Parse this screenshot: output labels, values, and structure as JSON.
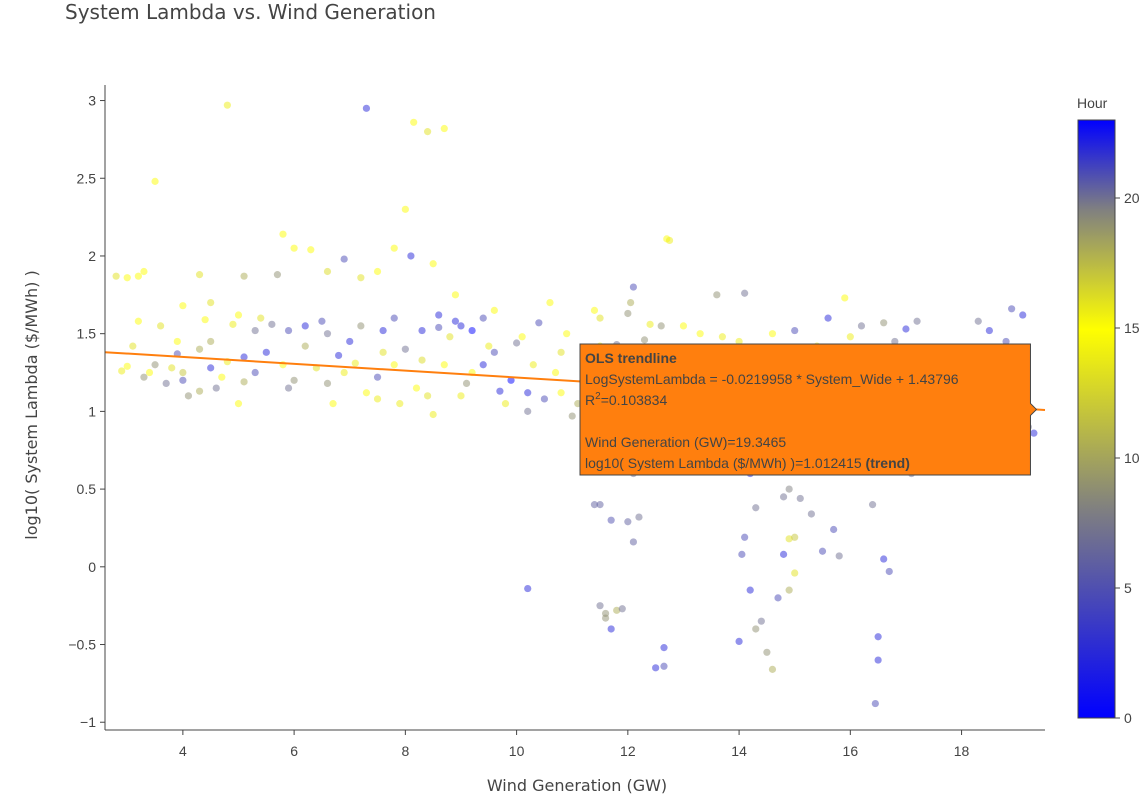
{
  "chart_data": {
    "type": "scatter",
    "title": "System Lambda vs. Wind Generation",
    "xlabel": "Wind Generation (GW)",
    "ylabel": "log10( System Lambda ($/MWh) )",
    "xlim": [
      2.6,
      19.5
    ],
    "ylim": [
      -1.05,
      3.1
    ],
    "xticks": [
      4,
      6,
      8,
      10,
      12,
      14,
      16,
      18
    ],
    "yticks": [
      3,
      2.5,
      2,
      1.5,
      1,
      0.5,
      0,
      -0.5,
      -1
    ],
    "ytick_labels": [
      "3",
      "2.5",
      "2",
      "1.5",
      "1",
      "0.5",
      "0",
      "−0.5",
      "−1"
    ],
    "grid": false,
    "colorbar": {
      "title": "Hour",
      "range": [
        0,
        23
      ],
      "ticks": [
        0,
        5,
        10,
        15,
        20
      ],
      "colorscale": [
        [
          0,
          "#0000ff"
        ],
        [
          0.35,
          "#808080"
        ],
        [
          0.65,
          "#ffff00"
        ],
        [
          0.85,
          "#808080"
        ],
        [
          1,
          "#0000ff"
        ]
      ]
    },
    "trendline": {
      "slope": -0.0219958,
      "intercept": 1.43796,
      "x_range": [
        2.6,
        19.5
      ],
      "color": "#ff7f0e"
    },
    "tooltip": {
      "header": "OLS trendline",
      "equation": "LogSystemLambda = -0.0219958 * System_Wide + 1.43796",
      "r2_label": "R",
      "r2_sup": "2",
      "r2_value": "=0.103834",
      "x_line": "Wind Generation (GW)=19.3465",
      "y_line": "log10( System Lambda ($/MWh) )=1.012415 ",
      "y_suffix": "(trend)",
      "x": 19.3465,
      "y": 1.012415,
      "bg_color": "#ff7f0e"
    },
    "points": [
      [
        4.8,
        2.97,
        14
      ],
      [
        7.3,
        2.95,
        22
      ],
      [
        8.15,
        2.86,
        15
      ],
      [
        8.4,
        2.8,
        16
      ],
      [
        8.7,
        2.82,
        15
      ],
      [
        3.5,
        2.48,
        15
      ],
      [
        8.0,
        2.3,
        15
      ],
      [
        5.8,
        2.14,
        15
      ],
      [
        12.7,
        2.11,
        15
      ],
      [
        12.75,
        2.1,
        14
      ],
      [
        6.0,
        2.05,
        15
      ],
      [
        6.3,
        2.04,
        15
      ],
      [
        7.8,
        2.05,
        15
      ],
      [
        8.1,
        2.0,
        22
      ],
      [
        6.9,
        1.98,
        21
      ],
      [
        8.5,
        1.95,
        15
      ],
      [
        6.6,
        1.9,
        13
      ],
      [
        4.3,
        1.88,
        16
      ],
      [
        5.1,
        1.87,
        18
      ],
      [
        7.2,
        1.86,
        16
      ],
      [
        3.3,
        1.9,
        15
      ],
      [
        12.1,
        1.8,
        21
      ],
      [
        13.6,
        1.75,
        19
      ],
      [
        15.9,
        1.73,
        15
      ],
      [
        12.0,
        1.63,
        19
      ],
      [
        12.05,
        1.7,
        18
      ],
      [
        14.1,
        1.76,
        20
      ],
      [
        18.9,
        1.66,
        21
      ],
      [
        19.1,
        1.62,
        22
      ],
      [
        18.3,
        1.58,
        20
      ],
      [
        17.2,
        1.58,
        20
      ],
      [
        16.6,
        1.57,
        19
      ],
      [
        15.6,
        1.6,
        22
      ],
      [
        12.6,
        1.55,
        19
      ],
      [
        11.5,
        1.6,
        16
      ],
      [
        18.5,
        1.52,
        22
      ],
      [
        18.8,
        1.45,
        21
      ],
      [
        17.0,
        1.53,
        22
      ],
      [
        16.2,
        1.55,
        20
      ],
      [
        13.3,
        1.5,
        15
      ],
      [
        14.0,
        1.45,
        14
      ],
      [
        15.0,
        1.52,
        21
      ],
      [
        16.8,
        1.45,
        20
      ],
      [
        10.4,
        1.57,
        21
      ],
      [
        9.4,
        1.6,
        21
      ],
      [
        9.0,
        1.55,
        22
      ],
      [
        8.6,
        1.62,
        22
      ],
      [
        6.5,
        1.58,
        21
      ],
      [
        5.6,
        1.56,
        20
      ],
      [
        7.0,
        1.45,
        22
      ],
      [
        4.3,
        1.4,
        18
      ],
      [
        3.9,
        1.45,
        15
      ],
      [
        3.1,
        1.42,
        16
      ],
      [
        3.5,
        1.3,
        19
      ],
      [
        4.0,
        1.2,
        21
      ],
      [
        4.6,
        1.15,
        20
      ],
      [
        5.3,
        1.25,
        21
      ],
      [
        6.0,
        1.2,
        19
      ],
      [
        7.5,
        1.22,
        21
      ],
      [
        8.2,
        1.15,
        15
      ],
      [
        9.0,
        1.1,
        14
      ],
      [
        9.8,
        1.05,
        14
      ],
      [
        10.5,
        1.08,
        21
      ],
      [
        11.0,
        0.97,
        19
      ],
      [
        11.4,
        0.98,
        20
      ],
      [
        5.0,
        1.05,
        15
      ],
      [
        6.7,
        1.05,
        15
      ],
      [
        7.5,
        1.08,
        14
      ],
      [
        8.5,
        0.98,
        14
      ],
      [
        5.3,
        1.52,
        20
      ],
      [
        6.2,
        1.42,
        18
      ],
      [
        7.6,
        1.52,
        22
      ],
      [
        8.8,
        1.48,
        16
      ],
      [
        10.0,
        1.44,
        20
      ],
      [
        10.9,
        1.5,
        15
      ],
      [
        11.8,
        1.43,
        20
      ],
      [
        12.3,
        1.46,
        19
      ],
      [
        13.0,
        1.55,
        15
      ],
      [
        13.7,
        1.48,
        14
      ],
      [
        14.6,
        1.5,
        15
      ],
      [
        3.4,
        1.25,
        15
      ],
      [
        3.8,
        1.28,
        16
      ],
      [
        4.8,
        1.32,
        14
      ],
      [
        5.8,
        1.3,
        15
      ],
      [
        6.4,
        1.28,
        16
      ],
      [
        7.1,
        1.31,
        14
      ],
      [
        7.8,
        1.3,
        15
      ],
      [
        8.3,
        1.33,
        13
      ],
      [
        9.2,
        1.25,
        15
      ],
      [
        9.6,
        1.38,
        21
      ],
      [
        10.3,
        1.3,
        14
      ],
      [
        10.7,
        1.25,
        15
      ],
      [
        11.2,
        1.18,
        16
      ],
      [
        5.5,
        1.38,
        22
      ],
      [
        6.8,
        1.36,
        22
      ],
      [
        8.0,
        1.4,
        20
      ],
      [
        9.4,
        1.3,
        22
      ],
      [
        9.9,
        1.2,
        23
      ],
      [
        10.2,
        1.12,
        22
      ],
      [
        11.1,
        1.05,
        18
      ],
      [
        11.6,
        0.92,
        18
      ],
      [
        12.2,
        1.3,
        16
      ],
      [
        12.9,
        1.25,
        20
      ],
      [
        13.5,
        1.4,
        14
      ],
      [
        14.2,
        1.35,
        15
      ],
      [
        3.2,
        1.58,
        15
      ],
      [
        3.6,
        1.55,
        16
      ],
      [
        4.4,
        1.59,
        15
      ],
      [
        4.9,
        1.56,
        14
      ],
      [
        5.4,
        1.6,
        16
      ],
      [
        3.0,
        1.86,
        15
      ],
      [
        2.8,
        1.87,
        16
      ],
      [
        3.2,
        1.87,
        15
      ],
      [
        4.0,
        1.68,
        15
      ],
      [
        4.5,
        1.7,
        16
      ],
      [
        5.0,
        1.62,
        15
      ],
      [
        5.7,
        1.88,
        19
      ],
      [
        7.5,
        1.9,
        15
      ],
      [
        8.9,
        1.75,
        15
      ],
      [
        9.6,
        1.65,
        15
      ],
      [
        10.6,
        1.7,
        15
      ],
      [
        11.4,
        1.65,
        15
      ],
      [
        12.4,
        1.56,
        14
      ],
      [
        4.1,
        1.1,
        19
      ],
      [
        4.3,
        1.13,
        18
      ],
      [
        3.7,
        1.18,
        20
      ],
      [
        3.3,
        1.22,
        19
      ],
      [
        2.9,
        1.26,
        14
      ],
      [
        3.0,
        1.29,
        15
      ],
      [
        3.9,
        1.37,
        21
      ],
      [
        4.5,
        1.28,
        22
      ],
      [
        5.1,
        1.19,
        18
      ],
      [
        5.9,
        1.15,
        20
      ],
      [
        6.6,
        1.18,
        19
      ],
      [
        7.3,
        1.12,
        15
      ],
      [
        7.9,
        1.05,
        14
      ],
      [
        8.4,
        1.1,
        16
      ],
      [
        9.1,
        1.18,
        19
      ],
      [
        9.7,
        1.13,
        22
      ],
      [
        10.2,
        1.0,
        20
      ],
      [
        10.8,
        1.12,
        15
      ],
      [
        11.3,
        1.08,
        16
      ],
      [
        11.7,
        1.1,
        19
      ],
      [
        12.1,
        1.02,
        18
      ],
      [
        11.5,
        0.4,
        6
      ],
      [
        11.4,
        0.4,
        6
      ],
      [
        11.7,
        0.3,
        5
      ],
      [
        12.0,
        0.29,
        6
      ],
      [
        12.1,
        0.16,
        6
      ],
      [
        12.2,
        0.32,
        7
      ],
      [
        12.1,
        0.6,
        7
      ],
      [
        12.3,
        0.75,
        6
      ],
      [
        11.5,
        -0.25,
        20
      ],
      [
        11.6,
        -0.3,
        19
      ],
      [
        11.7,
        -0.4,
        22
      ],
      [
        11.8,
        -0.28,
        18
      ],
      [
        11.9,
        -0.27,
        20
      ],
      [
        11.6,
        -0.33,
        19
      ],
      [
        10.2,
        -0.14,
        22
      ],
      [
        12.5,
        -0.65,
        22
      ],
      [
        12.65,
        -0.64,
        21
      ],
      [
        12.65,
        -0.52,
        22
      ],
      [
        14.0,
        -0.48,
        22
      ],
      [
        14.1,
        0.19,
        21
      ],
      [
        14.05,
        0.08,
        21
      ],
      [
        14.3,
        0.38,
        20
      ],
      [
        14.2,
        -0.15,
        22
      ],
      [
        14.5,
        -0.55,
        19
      ],
      [
        14.6,
        -0.66,
        18
      ],
      [
        14.4,
        -0.35,
        20
      ],
      [
        14.3,
        -0.4,
        19
      ],
      [
        14.7,
        -0.2,
        21
      ],
      [
        14.8,
        0.08,
        22
      ],
      [
        14.9,
        0.18,
        16
      ],
      [
        15.0,
        0.19,
        17
      ],
      [
        14.9,
        -0.15,
        18
      ],
      [
        15.0,
        -0.04,
        16
      ],
      [
        14.8,
        0.45,
        7
      ],
      [
        14.9,
        0.5,
        8
      ],
      [
        15.1,
        0.44,
        20
      ],
      [
        15.3,
        0.34,
        20
      ],
      [
        15.5,
        0.1,
        21
      ],
      [
        15.8,
        0.07,
        20
      ],
      [
        15.7,
        0.24,
        21
      ],
      [
        14.2,
        0.6,
        22
      ],
      [
        14.5,
        0.77,
        19
      ],
      [
        14.6,
        0.75,
        21
      ],
      [
        16.4,
        0.4,
        20
      ],
      [
        16.6,
        0.05,
        22
      ],
      [
        16.7,
        -0.03,
        21
      ],
      [
        16.5,
        -0.45,
        22
      ],
      [
        16.5,
        -0.6,
        22
      ],
      [
        16.45,
        -0.88,
        21
      ],
      [
        16.8,
        0.8,
        19
      ],
      [
        17.1,
        0.6,
        20
      ],
      [
        19.0,
        0.74,
        19
      ],
      [
        19.1,
        0.82,
        19
      ],
      [
        19.2,
        0.9,
        20
      ],
      [
        19.3,
        0.86,
        22
      ],
      [
        18.9,
        0.9,
        21
      ],
      [
        17.7,
        0.95,
        20
      ],
      [
        18.2,
        0.85,
        22
      ],
      [
        17.5,
        0.87,
        19
      ],
      [
        15.2,
        1.35,
        22
      ],
      [
        15.6,
        1.3,
        21
      ],
      [
        16.1,
        1.38,
        20
      ],
      [
        16.9,
        1.3,
        22
      ],
      [
        17.4,
        1.35,
        21
      ],
      [
        18.1,
        1.4,
        22
      ],
      [
        18.6,
        1.28,
        20
      ],
      [
        13.8,
        1.28,
        20
      ],
      [
        13.2,
        1.18,
        19
      ],
      [
        14.4,
        1.2,
        22
      ],
      [
        15.0,
        1.08,
        20
      ],
      [
        15.9,
        1.12,
        21
      ],
      [
        16.3,
        1.06,
        22
      ],
      [
        17.8,
        1.1,
        21
      ],
      [
        18.4,
        1.02,
        20
      ],
      [
        19.0,
        1.1,
        22
      ],
      [
        8.3,
        1.52,
        22
      ],
      [
        8.6,
        1.54,
        21
      ],
      [
        8.9,
        1.58,
        22
      ],
      [
        9.2,
        1.52,
        23
      ],
      [
        5.9,
        1.52,
        21
      ],
      [
        6.2,
        1.55,
        22
      ],
      [
        6.6,
        1.5,
        20
      ],
      [
        7.2,
        1.55,
        19
      ],
      [
        7.8,
        1.6,
        21
      ],
      [
        4.5,
        1.45,
        18
      ],
      [
        5.1,
        1.35,
        22
      ],
      [
        4.0,
        1.25,
        17
      ],
      [
        4.7,
        1.22,
        15
      ],
      [
        6.9,
        1.25,
        14
      ],
      [
        7.6,
        1.38,
        16
      ],
      [
        8.7,
        1.3,
        15
      ],
      [
        9.5,
        1.42,
        14
      ],
      [
        10.1,
        1.48,
        15
      ],
      [
        10.8,
        1.38,
        16
      ],
      [
        11.5,
        1.42,
        15
      ],
      [
        12.5,
        1.4,
        15
      ],
      [
        13.1,
        1.35,
        14
      ],
      [
        13.9,
        1.3,
        15
      ],
      [
        14.7,
        1.4,
        15
      ],
      [
        15.4,
        1.42,
        14
      ],
      [
        16.0,
        1.48,
        14
      ]
    ]
  }
}
